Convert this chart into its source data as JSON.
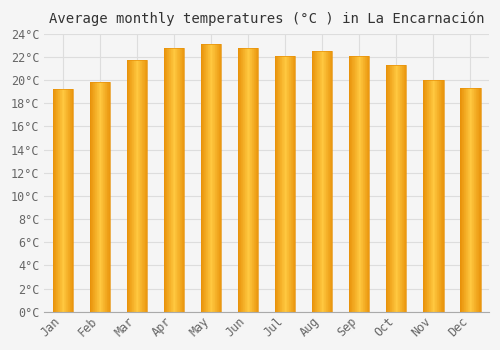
{
  "title": "Average monthly temperatures (°C ) in La Encarnación",
  "months": [
    "Jan",
    "Feb",
    "Mar",
    "Apr",
    "May",
    "Jun",
    "Jul",
    "Aug",
    "Sep",
    "Oct",
    "Nov",
    "Dec"
  ],
  "values": [
    19.2,
    19.8,
    21.7,
    22.8,
    23.1,
    22.8,
    22.1,
    22.5,
    22.1,
    21.3,
    20.0,
    19.3
  ],
  "bar_color_edge": "#E8920A",
  "bar_color_center": "#FFC840",
  "ylim": [
    0,
    24
  ],
  "ytick_step": 2,
  "background_color": "#f5f5f5",
  "plot_bg_color": "#f5f5f5",
  "grid_color": "#dddddd",
  "title_fontsize": 10,
  "tick_fontsize": 8.5,
  "figsize": [
    5.0,
    3.5
  ],
  "dpi": 100,
  "bar_width": 0.55
}
